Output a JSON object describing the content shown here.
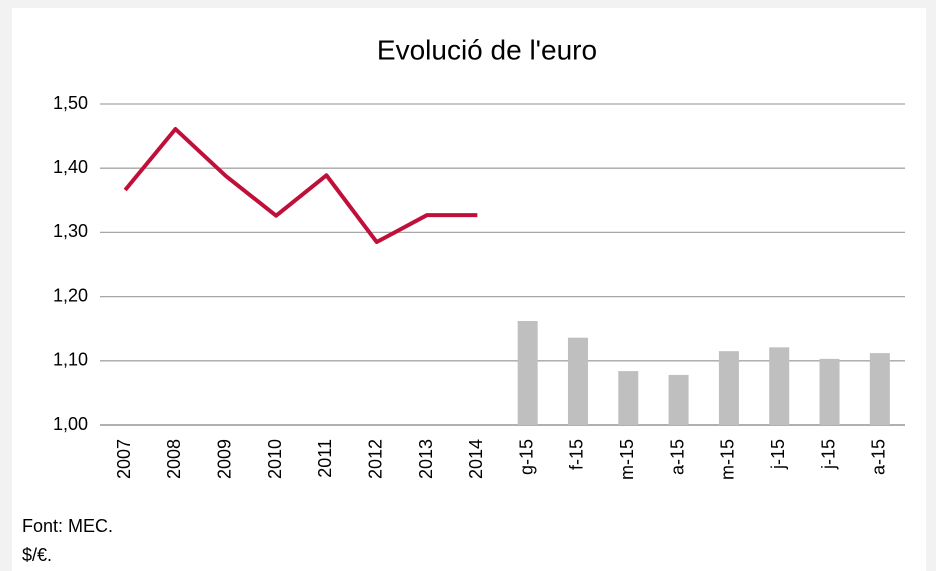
{
  "chart_data": {
    "type": "combo",
    "title": "Evolució de l'euro",
    "categories": [
      "2007",
      "2008",
      "2009",
      "2010",
      "2011",
      "2012",
      "2013",
      "2014",
      "g-15",
      "f-15",
      "m-15",
      "a-15",
      "m-15",
      "j-15",
      "j-15",
      "a-15"
    ],
    "series": [
      {
        "type": "line",
        "color": "#c0103a",
        "values": [
          1.366,
          1.461,
          1.388,
          1.326,
          1.389,
          1.285,
          1.327,
          1.327,
          null,
          null,
          null,
          null,
          null,
          null,
          null,
          null
        ]
      },
      {
        "type": "bar",
        "color": "#bfbfbf",
        "values": [
          null,
          null,
          null,
          null,
          null,
          null,
          null,
          null,
          1.162,
          1.136,
          1.084,
          1.078,
          1.115,
          1.121,
          1.103,
          1.112
        ]
      }
    ],
    "ylim": [
      1.0,
      1.5
    ],
    "yticks": [
      {
        "value": 1.0,
        "label": "1,00"
      },
      {
        "value": 1.1,
        "label": "1,10"
      },
      {
        "value": 1.2,
        "label": "1,20"
      },
      {
        "value": 1.3,
        "label": "1,30"
      },
      {
        "value": 1.4,
        "label": "1,40"
      },
      {
        "value": 1.5,
        "label": "1,50"
      }
    ],
    "grid": true,
    "source": "Font: MEC.",
    "unit": "$/€."
  }
}
